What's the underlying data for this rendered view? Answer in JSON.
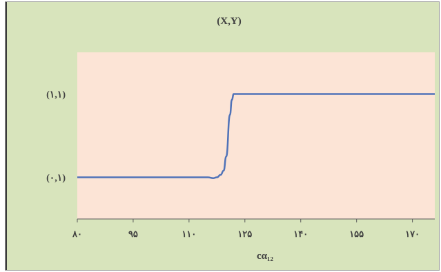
{
  "chart_data": {
    "type": "line",
    "title": "(X,Y)",
    "xlabel": "cα₁₂",
    "ylabel": "",
    "xlim": [
      80,
      176
    ],
    "ylim": [
      0,
      2
    ],
    "x_ticks": [
      {
        "value": 80,
        "label": "۸۰"
      },
      {
        "value": 95,
        "label": "۹۵"
      },
      {
        "value": 110,
        "label": "۱۱۰"
      },
      {
        "value": 125,
        "label": "۱۲۵"
      },
      {
        "value": 140,
        "label": "۱۴۰"
      },
      {
        "value": 155,
        "label": "۱۵۵"
      },
      {
        "value": 170,
        "label": "۱۷۰"
      }
    ],
    "y_ticks": [
      {
        "value": 0.5,
        "label": "(۰,۱)"
      },
      {
        "value": 1.5,
        "label": "(۱,۱)"
      }
    ],
    "grid": false,
    "legend": "none",
    "series": [
      {
        "color": "#4f72b8",
        "x": [
          80,
          110,
          115,
          116.5,
          117.5,
          118.5,
          119.3,
          120,
          121,
          121.5,
          122,
          123,
          127,
          140,
          155,
          176
        ],
        "y": [
          0.5,
          0.5,
          0.5,
          0.49,
          0.5,
          0.53,
          0.58,
          0.75,
          1.25,
          1.43,
          1.5,
          1.5,
          1.5,
          1.5,
          1.5,
          1.5
        ]
      }
    ],
    "plot_bg": "#fce4d6",
    "chart_bg": "#d8e4bc"
  }
}
